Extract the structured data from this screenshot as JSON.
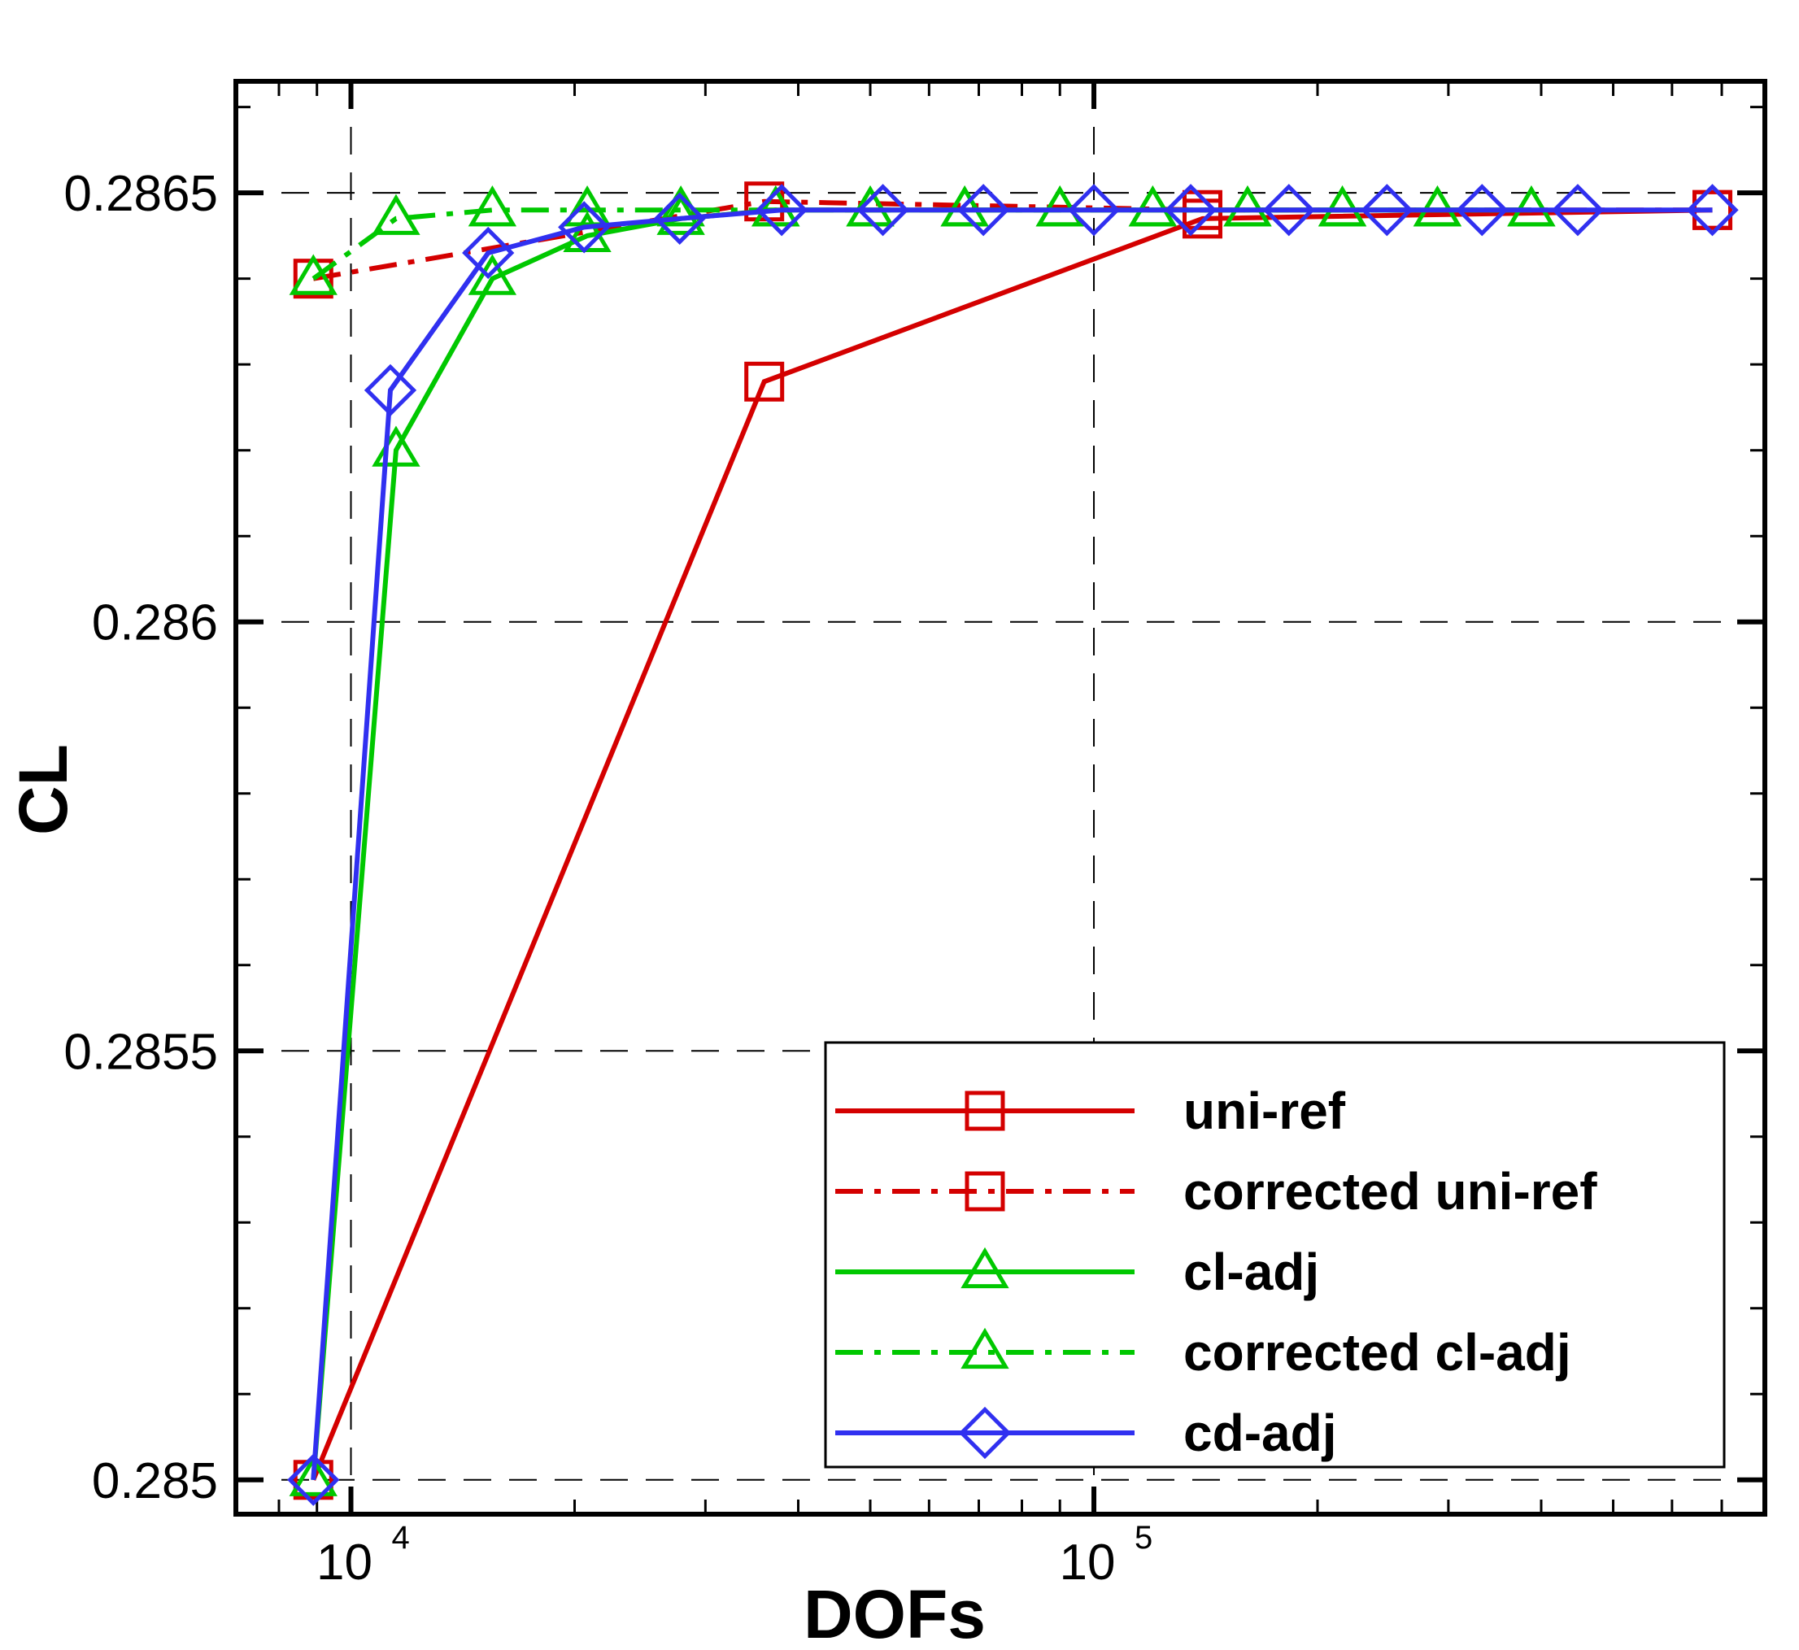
{
  "chart_data": {
    "type": "line",
    "xlabel": "DOFs",
    "ylabel": "CL",
    "x_scale": "log",
    "xlim": [
      7000,
      800000
    ],
    "ylim": [
      0.28496,
      0.28663
    ],
    "x_ticks": [
      {
        "value": 10000,
        "base": "10",
        "exp": "4"
      },
      {
        "value": 100000,
        "base": "10",
        "exp": "5"
      }
    ],
    "y_ticks": [
      {
        "value": 0.285,
        "label": "0.285"
      },
      {
        "value": 0.2855,
        "label": "0.2855"
      },
      {
        "value": 0.286,
        "label": "0.286"
      },
      {
        "value": 0.2865,
        "label": "0.2865"
      }
    ],
    "grid": true,
    "legend_position": "bottom-right",
    "series": [
      {
        "name": "uni-ref",
        "color": "#d40000",
        "dash": "solid",
        "marker": "square",
        "x": [
          8900,
          36000,
          140000,
          680000
        ],
        "y": [
          0.285,
          0.28628,
          0.28647,
          0.28648
        ]
      },
      {
        "name": "corrected uni-ref",
        "color": "#d40000",
        "dash": "dashdot",
        "marker": "square",
        "x": [
          8900,
          36000,
          140000,
          680000
        ],
        "y": [
          0.2864,
          0.28649,
          0.28648,
          0.28648
        ]
      },
      {
        "name": "cl-adj",
        "color": "#00c800",
        "dash": "solid",
        "marker": "triangle",
        "x": [
          8900,
          11500,
          15500,
          20800,
          27800,
          37300,
          50000,
          67000,
          90000,
          120000,
          161000,
          216000,
          290000,
          388000
        ],
        "y": [
          0.285,
          0.2862,
          0.2864,
          0.28645,
          0.28647,
          0.28648,
          0.28648,
          0.28648,
          0.28648,
          0.28648,
          0.28648,
          0.28648,
          0.28648,
          0.28648
        ]
      },
      {
        "name": "corrected cl-adj",
        "color": "#00c800",
        "dash": "dashdot",
        "marker": "triangle",
        "x": [
          8900,
          11500,
          15500,
          20800,
          27800,
          37300,
          50000,
          67000,
          90000,
          120000,
          161000,
          216000,
          290000,
          388000
        ],
        "y": [
          0.2864,
          0.28647,
          0.28648,
          0.28648,
          0.28648,
          0.28648,
          0.28648,
          0.28648,
          0.28648,
          0.28648,
          0.28648,
          0.28648,
          0.28648,
          0.28648
        ]
      },
      {
        "name": "cd-adj",
        "color": "#3030f0",
        "dash": "solid",
        "marker": "diamond",
        "x": [
          8900,
          11300,
          15300,
          20600,
          27700,
          38000,
          52000,
          71000,
          100000,
          135000,
          183000,
          248000,
          333000,
          448000,
          680000
        ],
        "y": [
          0.285,
          0.28627,
          0.28643,
          0.28646,
          0.28647,
          0.28648,
          0.28648,
          0.28648,
          0.28648,
          0.28648,
          0.28648,
          0.28648,
          0.28648,
          0.28648,
          0.28648
        ]
      }
    ]
  }
}
